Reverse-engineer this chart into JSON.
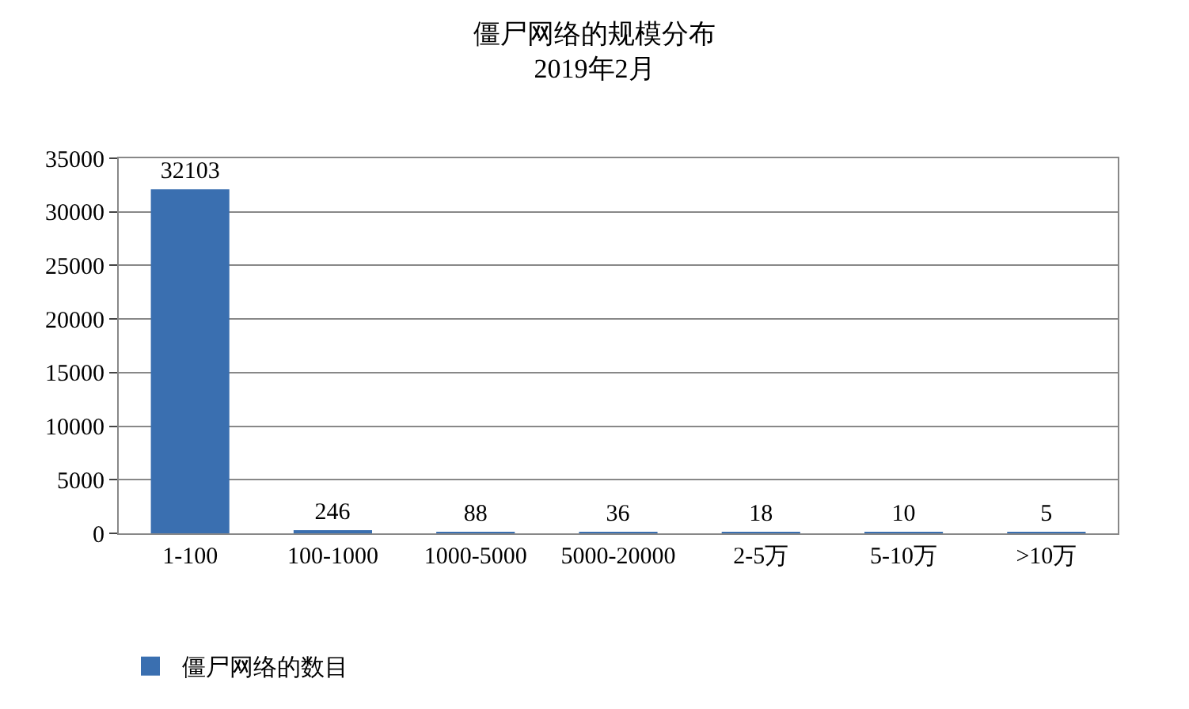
{
  "chart_data": {
    "type": "bar",
    "title": "僵尸网络的规模分布\n2019年2月",
    "categories": [
      "1-100",
      "100-1000",
      "1000-5000",
      "5000-20000",
      "2-5万",
      "5-10万",
      ">10万"
    ],
    "series": [
      {
        "name": "僵尸网络的数目",
        "color": "#3a6fb0",
        "values": [
          32103,
          246,
          88,
          36,
          18,
          10,
          5
        ]
      }
    ],
    "ylim": [
      0,
      35000
    ],
    "yticks": [
      0,
      5000,
      10000,
      15000,
      20000,
      25000,
      30000,
      35000
    ],
    "grid": "y",
    "data_labels": true,
    "legend": "bottom left"
  }
}
